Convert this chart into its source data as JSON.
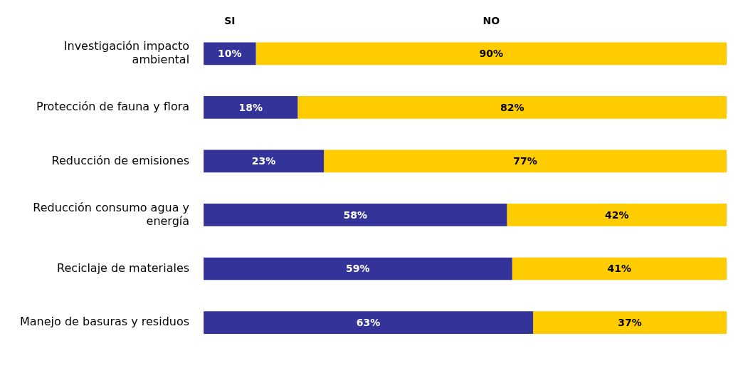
{
  "chart_data": {
    "type": "bar",
    "orientation": "horizontal",
    "stacked": true,
    "categories": [
      "Investigación impacto ambiental",
      "Protección de fauna y flora",
      "Reducción de emisiones",
      "Reducción consumo agua y energía",
      "Reciclaje de materiales",
      "Manejo de basuras y residuos"
    ],
    "series": [
      {
        "name": "SI",
        "color": "#333399",
        "values": [
          10,
          18,
          23,
          58,
          59,
          63
        ],
        "value_labels": [
          "10%",
          "18%",
          "23%",
          "58%",
          "59%",
          "63%"
        ]
      },
      {
        "name": "NO",
        "color": "#ffcc00",
        "values": [
          90,
          82,
          77,
          42,
          41,
          37
        ],
        "value_labels": [
          "90%",
          "82%",
          "77%",
          "42%",
          "41%",
          "37%"
        ]
      }
    ],
    "xlim": [
      0,
      100
    ],
    "tick_labels": "y",
    "grid": false
  }
}
